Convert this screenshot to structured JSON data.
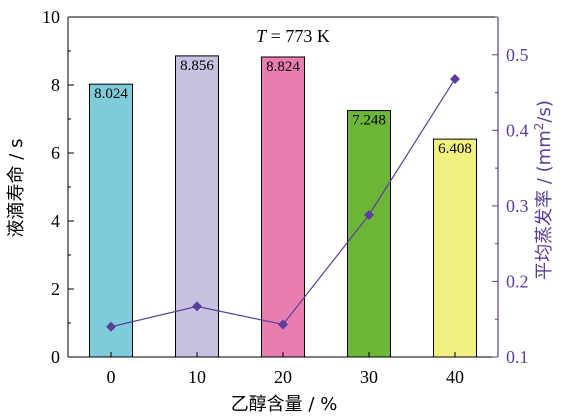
{
  "chart_data": {
    "type": "bar",
    "categories": [
      "0",
      "10",
      "20",
      "30",
      "40"
    ],
    "series": [
      {
        "values": [
          8.024,
          8.856,
          8.824,
          7.248,
          6.408
        ],
        "labels": [
          "8.024",
          "8.856",
          "8.824",
          "7.248",
          "6.408"
        ],
        "colors": [
          "#7ecbd9",
          "#c8c2e0",
          "#e87db0",
          "#6cb536",
          "#f2f07e"
        ],
        "axis": "left"
      },
      {
        "type": "line",
        "values": [
          0.14,
          0.167,
          0.143,
          0.288,
          0.468
        ],
        "color": "#5b3f9a",
        "marker": "diamond",
        "axis": "right"
      }
    ],
    "annotation": {
      "italic": "T",
      "rest": " = 773 K"
    },
    "xlabel": "乙醇含量 / %",
    "ylabel": "液滴寿命 / s",
    "y2label": {
      "main": "平均蒸发率 / (mm",
      "sup": "2",
      "tail": "/s)"
    },
    "ylim": [
      0,
      10
    ],
    "y2lim": [
      0.1,
      0.55
    ],
    "yticks": [
      "0",
      "2",
      "4",
      "6",
      "8",
      "10"
    ],
    "y2ticks": [
      "0.1",
      "0.2",
      "0.3",
      "0.4",
      "0.5"
    ],
    "grid": false,
    "legend": "none"
  }
}
